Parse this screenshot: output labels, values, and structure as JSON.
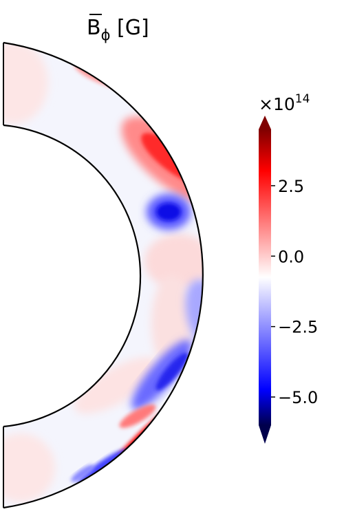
{
  "figure": {
    "title": {
      "base": "B",
      "sub": "ϕ",
      "unit": "[G]"
    },
    "colorbar": {
      "exponent_base": "×10",
      "exponent_power": "14",
      "ticks": [
        {
          "value": 2.5,
          "label": "2.5"
        },
        {
          "value": 0.0,
          "label": "0.0"
        },
        {
          "value": -2.5,
          "label": "−2.5"
        },
        {
          "value": -5.0,
          "label": "−5.0"
        }
      ],
      "colors": {
        "min": "#00004c",
        "mid": "#ffffff",
        "max": "#800000",
        "blue": "#0000ff",
        "red": "#ff0000"
      }
    }
  },
  "chart_data": {
    "type": "heatmap",
    "title": "B̄ϕ [G]",
    "xlabel": "",
    "ylabel": "",
    "geometry": "meridional half-annulus",
    "radius_inner_fraction": 0.64,
    "colorbar_range": [
      -6.0,
      4.5
    ],
    "colorbar_scale": "1e14",
    "extend": "both",
    "features": [
      {
        "region": "upper latitudes near outer boundary",
        "sign": "positive",
        "peak": 3.5
      },
      {
        "region": "thin band at high northern latitude",
        "sign": "negative",
        "peak": -5.5
      },
      {
        "region": "mid-northern interior near inner boundary",
        "sign": "negative",
        "peak": -4.5
      },
      {
        "region": "southern mid-latitudes",
        "sign": "negative",
        "peak": -2.5
      },
      {
        "region": "southern outer band",
        "sign": "positive",
        "peak": 4.0
      },
      {
        "region": "far southern thin band",
        "sign": "negative",
        "peak": -3.5
      }
    ]
  }
}
